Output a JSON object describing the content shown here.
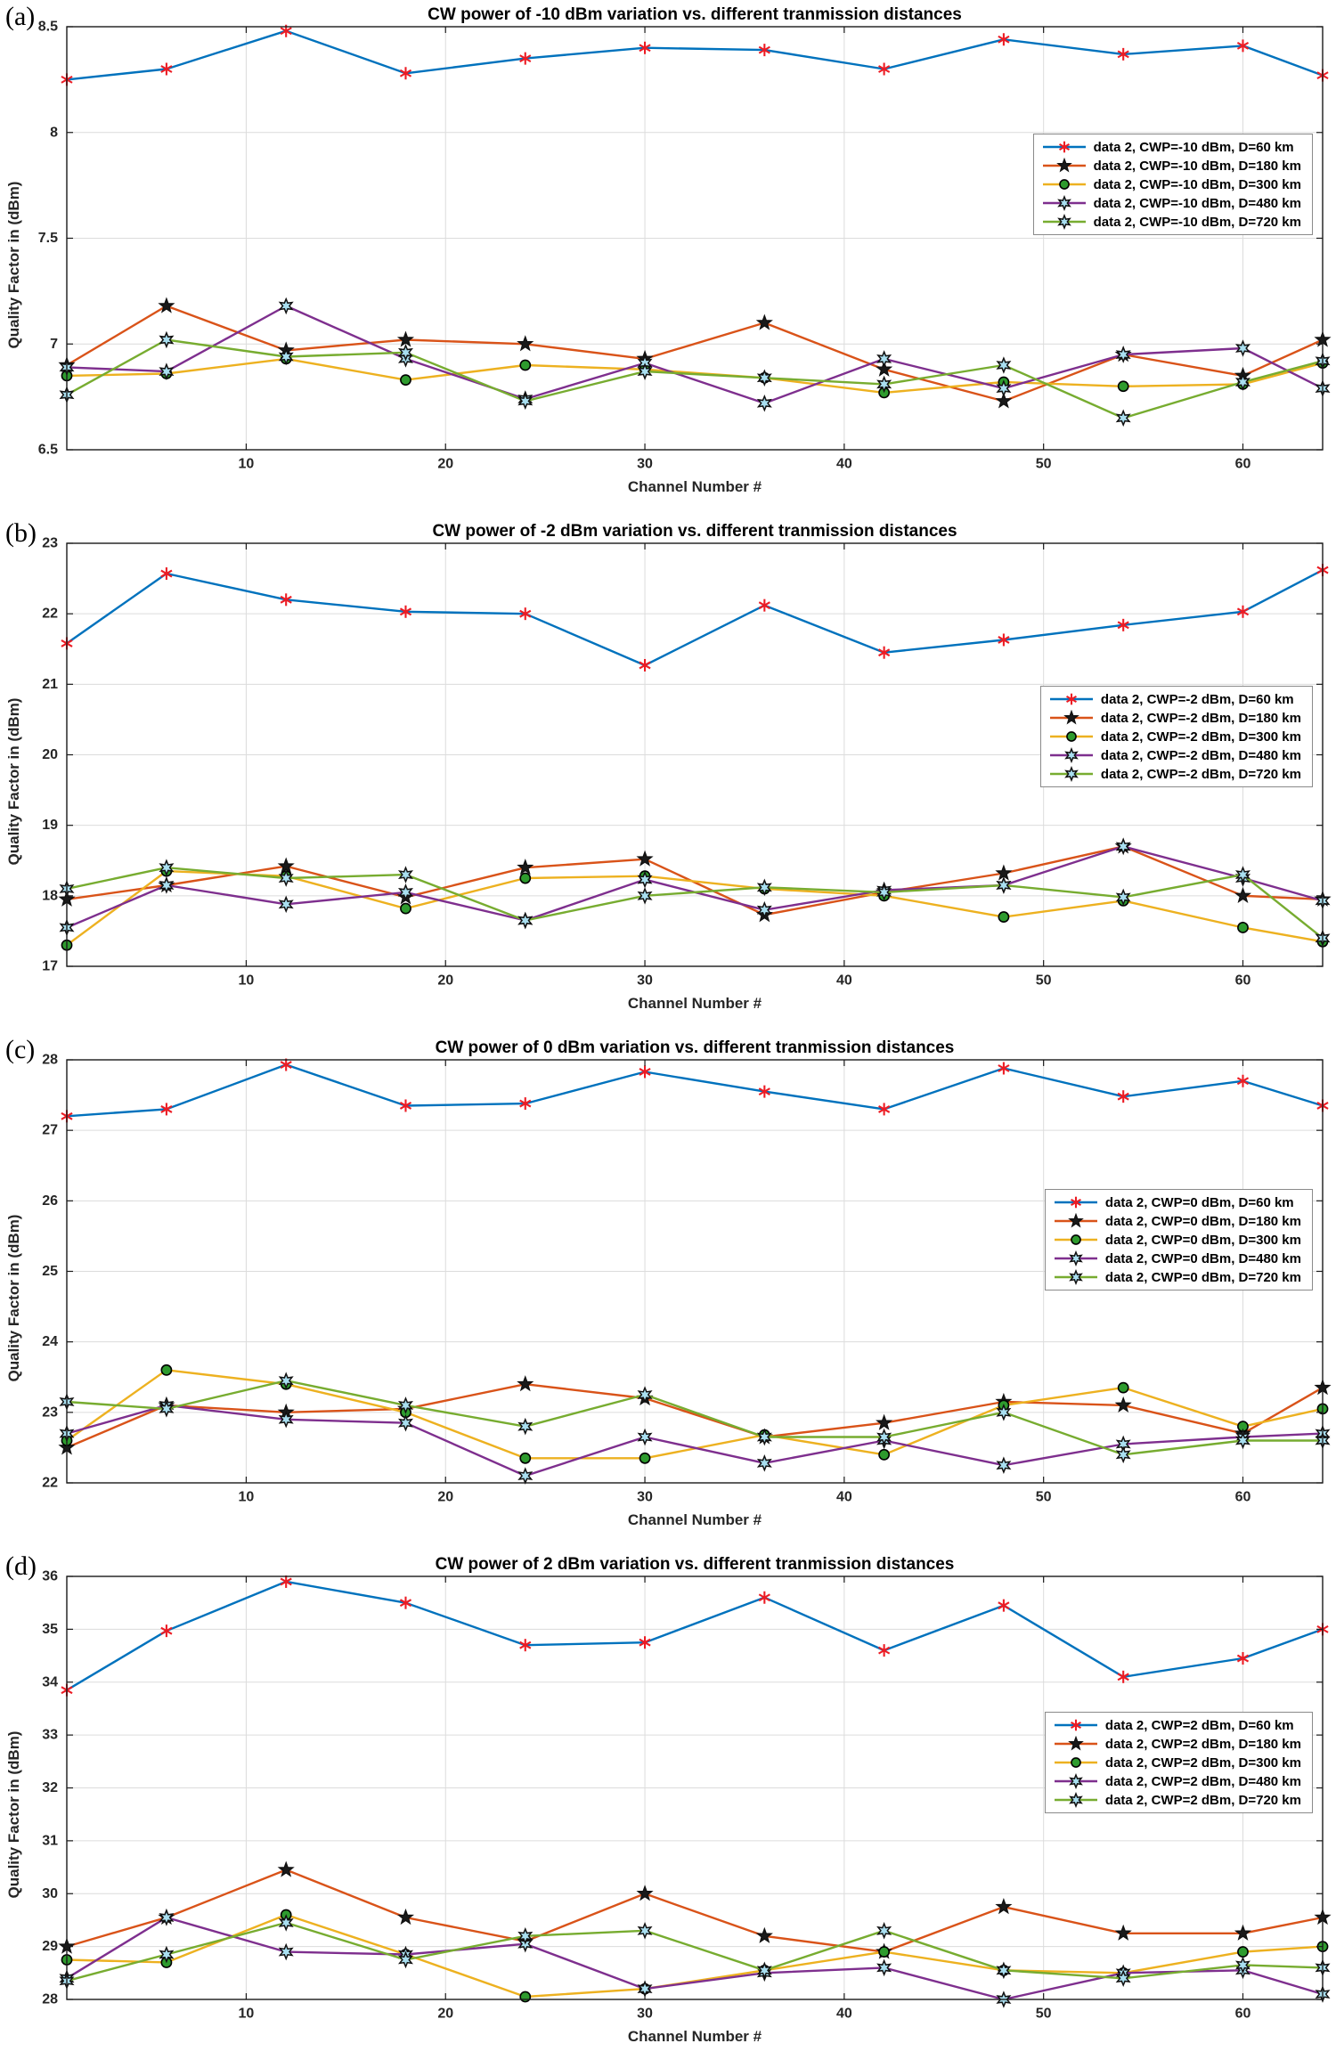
{
  "figure": {
    "panel_labels": [
      "(a)",
      "(b)",
      "(c)",
      "(d)"
    ]
  },
  "style": {
    "series_colors": [
      "#0072BD",
      "#D95319",
      "#EDB120",
      "#7E2F8E",
      "#77AC30"
    ],
    "marker_red": "#EC1C24",
    "marker_black": "#111111",
    "marker_green_fill": "#2E9B2E",
    "marker_hex_fill": "#A9DFF0",
    "grid_color": "#dcdcdc",
    "axis_color": "#1a1a1a",
    "tick_label_color": "#262626"
  },
  "chart_data": [
    {
      "type": "line",
      "panel_label": "(a)",
      "title": "CW power of -10 dBm variation vs. different tranmission distances",
      "xlabel": "Channel Number #",
      "ylabel": "Quality Factor in (dBm)",
      "xlim": [
        1,
        64
      ],
      "ylim": [
        6.5,
        8.5
      ],
      "xticks": [
        10,
        20,
        30,
        40,
        50,
        60
      ],
      "yticks": [
        6.5,
        7,
        7.5,
        8,
        8.5
      ],
      "grid": true,
      "legend_location": "right",
      "x": [
        1,
        6,
        12,
        18,
        24,
        30,
        36,
        42,
        48,
        54,
        60,
        64
      ],
      "series": [
        {
          "name": "data 2, CWP=-10 dBm, D=60 km",
          "line_color": "#0072BD",
          "marker": "asterisk",
          "marker_color": "#EC1C24",
          "marker_edge": "#EC1C24",
          "marker_fill": "none",
          "values": [
            8.25,
            8.3,
            8.48,
            8.28,
            8.35,
            8.4,
            8.39,
            8.3,
            8.44,
            8.37,
            8.41,
            8.27
          ]
        },
        {
          "name": "data 2, CWP=-10 dBm, D=180 km",
          "line_color": "#D95319",
          "marker": "pentagram",
          "marker_color": "#111111",
          "marker_edge": "#111111",
          "marker_fill": "#1a1a1a",
          "values": [
            6.9,
            7.18,
            6.97,
            7.02,
            7.0,
            6.93,
            7.1,
            6.88,
            6.73,
            6.95,
            6.85,
            7.02
          ]
        },
        {
          "name": "data 2, CWP=-10 dBm, D=300 km",
          "line_color": "#EDB120",
          "marker": "circle",
          "marker_color": "#2E9B2E",
          "marker_edge": "#000000",
          "marker_fill": "#2E9B2E",
          "values": [
            6.85,
            6.86,
            6.93,
            6.83,
            6.9,
            6.88,
            6.84,
            6.77,
            6.82,
            6.8,
            6.81,
            6.91
          ]
        },
        {
          "name": "data 2, CWP=-10 dBm, D=480 km",
          "line_color": "#7E2F8E",
          "marker": "hexagram",
          "marker_color": "#A9DFF0",
          "marker_edge": "#111111",
          "marker_fill": "#A9DFF0",
          "values": [
            6.89,
            6.87,
            7.18,
            6.93,
            6.74,
            6.91,
            6.72,
            6.93,
            6.79,
            6.95,
            6.98,
            6.79
          ]
        },
        {
          "name": "data 2, CWP=-10 dBm, D=720 km",
          "line_color": "#77AC30",
          "marker": "hexagram",
          "marker_color": "#A9DFF0",
          "marker_edge": "#111111",
          "marker_fill": "#A9DFF0",
          "values": [
            6.76,
            7.02,
            6.94,
            6.96,
            6.73,
            6.87,
            6.84,
            6.81,
            6.9,
            6.65,
            6.82,
            6.92
          ]
        }
      ]
    },
    {
      "type": "line",
      "panel_label": "(b)",
      "title": "CW power of -2 dBm variation vs. different tranmission distances",
      "xlabel": "Channel Number #",
      "ylabel": "Quality Factor in (dBm)",
      "xlim": [
        1,
        64
      ],
      "ylim": [
        17,
        23
      ],
      "xticks": [
        10,
        20,
        30,
        40,
        50,
        60
      ],
      "yticks": [
        17,
        18,
        19,
        20,
        21,
        22,
        23
      ],
      "grid": true,
      "legend_location": "right",
      "x": [
        1,
        6,
        12,
        18,
        24,
        30,
        36,
        42,
        48,
        54,
        60,
        64
      ],
      "series": [
        {
          "name": "data 2, CWP=-2 dBm, D=60 km",
          "line_color": "#0072BD",
          "marker": "asterisk",
          "marker_color": "#EC1C24",
          "marker_edge": "#EC1C24",
          "marker_fill": "none",
          "values": [
            21.58,
            22.57,
            22.2,
            22.03,
            22.0,
            21.27,
            22.12,
            21.45,
            21.63,
            21.84,
            22.03,
            22.62
          ]
        },
        {
          "name": "data 2, CWP=-2 dBm, D=180 km",
          "line_color": "#D95319",
          "marker": "pentagram",
          "marker_color": "#111111",
          "marker_edge": "#111111",
          "marker_fill": "#1a1a1a",
          "values": [
            17.95,
            18.15,
            18.42,
            17.98,
            18.4,
            18.52,
            17.73,
            18.05,
            18.32,
            18.7,
            18.0,
            17.95
          ]
        },
        {
          "name": "data 2, CWP=-2 dBm, D=300 km",
          "line_color": "#EDB120",
          "marker": "circle",
          "marker_color": "#2E9B2E",
          "marker_edge": "#000000",
          "marker_fill": "#2E9B2E",
          "values": [
            17.3,
            18.35,
            18.28,
            17.82,
            18.25,
            18.28,
            18.1,
            18.0,
            17.7,
            17.93,
            17.55,
            17.35
          ]
        },
        {
          "name": "data 2, CWP=-2 dBm, D=480 km",
          "line_color": "#7E2F8E",
          "marker": "hexagram",
          "marker_color": "#A9DFF0",
          "marker_edge": "#111111",
          "marker_fill": "#A9DFF0",
          "values": [
            17.55,
            18.15,
            17.88,
            18.05,
            17.65,
            18.23,
            17.8,
            18.08,
            18.15,
            18.7,
            18.25,
            17.93
          ]
        },
        {
          "name": "data 2, CWP=-2 dBm, D=720 km",
          "line_color": "#77AC30",
          "marker": "hexagram",
          "marker_color": "#A9DFF0",
          "marker_edge": "#111111",
          "marker_fill": "#A9DFF0",
          "values": [
            18.1,
            18.4,
            18.25,
            18.3,
            17.65,
            18.0,
            18.12,
            18.05,
            18.15,
            17.98,
            18.3,
            17.4
          ]
        }
      ]
    },
    {
      "type": "line",
      "panel_label": "(c)",
      "title": "CW power of 0 dBm variation vs. different tranmission distances",
      "xlabel": "Channel Number #",
      "ylabel": "Quality Factor in (dBm)",
      "xlim": [
        1,
        64
      ],
      "ylim": [
        22,
        28
      ],
      "xticks": [
        10,
        20,
        30,
        40,
        50,
        60
      ],
      "yticks": [
        22,
        23,
        24,
        25,
        26,
        27,
        28
      ],
      "grid": true,
      "legend_location": "right",
      "x": [
        1,
        6,
        12,
        18,
        24,
        30,
        36,
        42,
        48,
        54,
        60,
        64
      ],
      "series": [
        {
          "name": "data 2, CWP=0 dBm, D=60 km",
          "line_color": "#0072BD",
          "marker": "asterisk",
          "marker_color": "#EC1C24",
          "marker_edge": "#EC1C24",
          "marker_fill": "none",
          "values": [
            27.2,
            27.3,
            27.93,
            27.35,
            27.38,
            27.83,
            27.55,
            27.3,
            27.88,
            27.48,
            27.7,
            27.35
          ]
        },
        {
          "name": "data 2, CWP=0 dBm, D=180 km",
          "line_color": "#D95319",
          "marker": "pentagram",
          "marker_color": "#111111",
          "marker_edge": "#111111",
          "marker_fill": "#1a1a1a",
          "values": [
            22.5,
            23.1,
            23.0,
            23.05,
            23.4,
            23.2,
            22.65,
            22.85,
            23.15,
            23.1,
            22.7,
            23.35
          ]
        },
        {
          "name": "data 2, CWP=0 dBm, D=300 km",
          "line_color": "#EDB120",
          "marker": "circle",
          "marker_color": "#2E9B2E",
          "marker_edge": "#000000",
          "marker_fill": "#2E9B2E",
          "values": [
            22.6,
            23.6,
            23.4,
            23.0,
            22.35,
            22.35,
            22.68,
            22.4,
            23.1,
            23.35,
            22.8,
            23.05
          ]
        },
        {
          "name": "data 2, CWP=0 dBm, D=480 km",
          "line_color": "#7E2F8E",
          "marker": "hexagram",
          "marker_color": "#A9DFF0",
          "marker_edge": "#111111",
          "marker_fill": "#A9DFF0",
          "values": [
            22.7,
            23.1,
            22.9,
            22.85,
            22.1,
            22.65,
            22.28,
            22.6,
            22.25,
            22.55,
            22.65,
            22.7
          ]
        },
        {
          "name": "data 2, CWP=0 dBm, D=720 km",
          "line_color": "#77AC30",
          "marker": "hexagram",
          "marker_color": "#A9DFF0",
          "marker_edge": "#111111",
          "marker_fill": "#A9DFF0",
          "values": [
            23.15,
            23.05,
            23.45,
            23.1,
            22.8,
            23.25,
            22.65,
            22.65,
            23.0,
            22.4,
            22.6,
            22.6
          ]
        }
      ]
    },
    {
      "type": "line",
      "panel_label": "(d)",
      "title": "CW power of 2 dBm variation vs. different tranmission distances",
      "xlabel": "Channel Number #",
      "ylabel": "Quality Factor in (dBm)",
      "xlim": [
        1,
        64
      ],
      "ylim": [
        28,
        36
      ],
      "xticks": [
        10,
        20,
        30,
        40,
        50,
        60
      ],
      "yticks": [
        28,
        29,
        30,
        31,
        32,
        33,
        34,
        35,
        36
      ],
      "grid": true,
      "legend_location": "right",
      "x": [
        1,
        6,
        12,
        18,
        24,
        30,
        36,
        42,
        48,
        54,
        60,
        64
      ],
      "series": [
        {
          "name": "data 2, CWP=2 dBm, D=60 km",
          "line_color": "#0072BD",
          "marker": "asterisk",
          "marker_color": "#EC1C24",
          "marker_edge": "#EC1C24",
          "marker_fill": "none",
          "values": [
            33.85,
            34.97,
            35.9,
            35.5,
            34.7,
            34.75,
            35.6,
            34.6,
            35.45,
            34.1,
            34.45,
            35.0
          ]
        },
        {
          "name": "data 2, CWP=2 dBm, D=180 km",
          "line_color": "#D95319",
          "marker": "pentagram",
          "marker_color": "#111111",
          "marker_edge": "#111111",
          "marker_fill": "#1a1a1a",
          "values": [
            29.0,
            29.55,
            30.45,
            29.55,
            29.1,
            30.0,
            29.2,
            28.9,
            29.75,
            29.25,
            29.25,
            29.55
          ]
        },
        {
          "name": "data 2, CWP=2 dBm, D=300 km",
          "line_color": "#EDB120",
          "marker": "circle",
          "marker_color": "#2E9B2E",
          "marker_edge": "#000000",
          "marker_fill": "#2E9B2E",
          "values": [
            28.75,
            28.7,
            29.6,
            28.85,
            28.05,
            28.2,
            28.55,
            28.9,
            28.55,
            28.5,
            28.9,
            29.0
          ]
        },
        {
          "name": "data 2, CWP=2 dBm, D=480 km",
          "line_color": "#7E2F8E",
          "marker": "hexagram",
          "marker_color": "#A9DFF0",
          "marker_edge": "#111111",
          "marker_fill": "#A9DFF0",
          "values": [
            28.4,
            29.55,
            28.9,
            28.85,
            29.05,
            28.2,
            28.5,
            28.6,
            28.0,
            28.5,
            28.55,
            28.1
          ]
        },
        {
          "name": "data 2, CWP=2 dBm, D=720 km",
          "line_color": "#77AC30",
          "marker": "hexagram",
          "marker_color": "#A9DFF0",
          "marker_edge": "#111111",
          "marker_fill": "#A9DFF0",
          "values": [
            28.35,
            28.85,
            29.45,
            28.75,
            29.2,
            29.3,
            28.55,
            29.3,
            28.55,
            28.4,
            28.65,
            28.6
          ]
        }
      ]
    }
  ]
}
